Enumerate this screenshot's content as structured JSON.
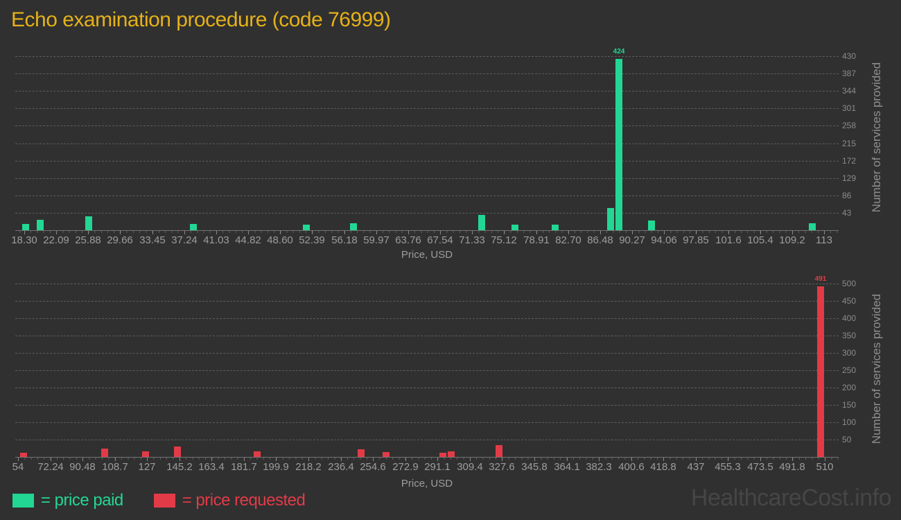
{
  "title": "Echo examination procedure (code 76999)",
  "watermark": "HealthcareCost.info",
  "legend": {
    "paid_label": "= price paid",
    "requested_label": "= price requested"
  },
  "colors": {
    "background": "#303030",
    "title": "#e6b118",
    "paid": "#22d794",
    "requested": "#e23b47",
    "axis_text": "#9d9d9d",
    "grid": "#5c5c5c",
    "watermark": "#464646"
  },
  "chart_data": [
    {
      "type": "bar",
      "name": "price-paid-histogram",
      "series_label": "price paid",
      "bar_color": "#22d794",
      "xlabel": "Price, USD",
      "ylabel": "Number of services provided",
      "xlim": [
        18.3,
        113
      ],
      "ylim": [
        0,
        445
      ],
      "x_ticks": [
        "18.30",
        "22.09",
        "25.88",
        "29.66",
        "33.45",
        "37.24",
        "41.03",
        "44.82",
        "48.60",
        "52.39",
        "56.18",
        "59.97",
        "63.76",
        "67.54",
        "71.33",
        "75.12",
        "78.91",
        "82.70",
        "86.48",
        "90.27",
        "94.06",
        "97.85",
        "101.6",
        "105.4",
        "109.2",
        "113"
      ],
      "y_ticks": [
        43,
        86,
        129,
        172,
        215,
        258,
        301,
        344,
        387,
        430
      ],
      "grid": true,
      "legend_position": "bottom",
      "bars": [
        {
          "x": 18.5,
          "count": 15
        },
        {
          "x": 20.2,
          "count": 26
        },
        {
          "x": 25.9,
          "count": 34
        },
        {
          "x": 38.3,
          "count": 15
        },
        {
          "x": 51.7,
          "count": 14
        },
        {
          "x": 57.3,
          "count": 17
        },
        {
          "x": 72.5,
          "count": 37
        },
        {
          "x": 76.4,
          "count": 14
        },
        {
          "x": 81.2,
          "count": 14
        },
        {
          "x": 87.7,
          "count": 55
        },
        {
          "x": 88.7,
          "count": 424,
          "label": "424"
        },
        {
          "x": 92.6,
          "count": 24
        },
        {
          "x": 111.6,
          "count": 17
        }
      ]
    },
    {
      "type": "bar",
      "name": "price-requested-histogram",
      "series_label": "price requested",
      "bar_color": "#e23b47",
      "xlabel": "Price, USD",
      "ylabel": "Number of services provided",
      "xlim": [
        54,
        510
      ],
      "ylim": [
        0,
        515
      ],
      "x_ticks": [
        "54",
        "72.24",
        "90.48",
        "108.7",
        "127",
        "145.2",
        "163.4",
        "181.7",
        "199.9",
        "218.2",
        "236.4",
        "254.6",
        "272.9",
        "291.1",
        "309.4",
        "327.6",
        "345.8",
        "364.1",
        "382.3",
        "400.6",
        "418.8",
        "437",
        "455.3",
        "473.5",
        "491.8",
        "510"
      ],
      "y_ticks": [
        50,
        100,
        150,
        200,
        250,
        300,
        350,
        400,
        450,
        500
      ],
      "grid": true,
      "legend_position": "bottom",
      "bars": [
        {
          "x": 57.3,
          "count": 12
        },
        {
          "x": 103,
          "count": 24
        },
        {
          "x": 126,
          "count": 16
        },
        {
          "x": 144,
          "count": 30
        },
        {
          "x": 189,
          "count": 16
        },
        {
          "x": 248,
          "count": 22
        },
        {
          "x": 262,
          "count": 14
        },
        {
          "x": 294,
          "count": 12
        },
        {
          "x": 299,
          "count": 16
        },
        {
          "x": 326,
          "count": 34
        },
        {
          "x": 507.5,
          "count": 491,
          "label": "491"
        }
      ]
    }
  ]
}
